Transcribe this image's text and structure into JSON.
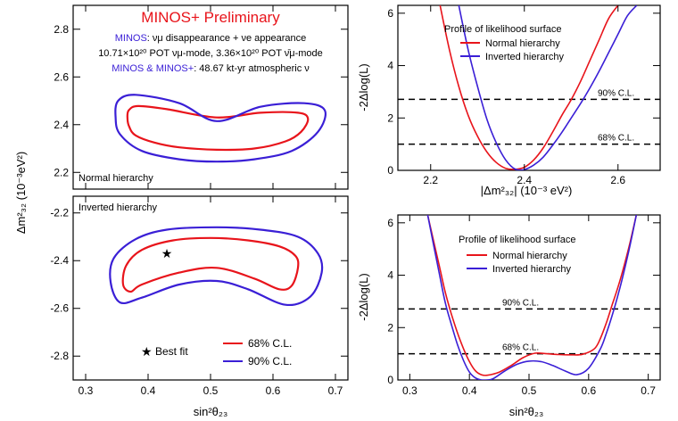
{
  "colors": {
    "normal": "#e8141b",
    "inverted": "#3a1fd6",
    "header_blue": "#3a1fd6",
    "header_red": "#e8141b"
  },
  "left": {
    "header": {
      "title": "MINOS+ Preliminary",
      "line1_blue": "MINOS",
      "line1_rest": ": νμ disappearance + νe appearance",
      "line2": "10.71×10²⁰ POT νμ-mode, 3.36×10²⁰ POT ν̄μ-mode",
      "line3_blue": "MINOS & MINOS+",
      "line3_rest": ": 48.67 kt-yr atmospheric ν"
    },
    "top_label": "Normal hierarchy",
    "bottom_label": "Inverted hierarchy",
    "ylabel": "Δm²₃₂ (10⁻³eV²)",
    "xlabel": "sin²θ₂₃",
    "legend": {
      "best_fit": "Best fit",
      "cl68": "68% C.L.",
      "cl90": "90% C.L."
    },
    "x_ticks": [
      "0.3",
      "0.4",
      "0.5",
      "0.6",
      "0.7"
    ],
    "top_y_ticks": [
      "2.2",
      "2.4",
      "2.6",
      "2.8"
    ],
    "bottom_y_ticks": [
      "-2.8",
      "-2.6",
      "-2.4",
      "-2.2"
    ]
  },
  "right": {
    "ylabel": "-2Δlog(L)",
    "top_xlabel": "|Δm²₃₂| (10⁻³ eV²)",
    "bottom_xlabel": "sin²θ₂₃",
    "legend_title": "Profile of likelihood surface",
    "legend_normal": "Normal hierarchy",
    "legend_inverted": "Inverted hierarchy",
    "cl90": "90% C.L.",
    "cl68": "68% C.L.",
    "top_x_ticks": [
      "2.2",
      "2.4",
      "2.6"
    ],
    "bottom_x_ticks": [
      "0.3",
      "0.4",
      "0.5",
      "0.6",
      "0.7"
    ],
    "y_ticks": [
      "0",
      "2",
      "4",
      "6"
    ]
  },
  "chart_data": [
    {
      "type": "contour",
      "panel": "normal hierarchy",
      "xlim": [
        0.28,
        0.72
      ],
      "ylim": [
        2.13,
        2.9
      ],
      "best_fit": null,
      "contours": [
        {
          "name": "68% C.L.",
          "level": 0.68,
          "points": [
            [
              0.367,
              2.425
            ],
            [
              0.369,
              2.46
            ],
            [
              0.384,
              2.478
            ],
            [
              0.43,
              2.465
            ],
            [
              0.51,
              2.43
            ],
            [
              0.58,
              2.45
            ],
            [
              0.64,
              2.45
            ],
            [
              0.656,
              2.425
            ],
            [
              0.645,
              2.37
            ],
            [
              0.62,
              2.33
            ],
            [
              0.57,
              2.3
            ],
            [
              0.51,
              2.295
            ],
            [
              0.45,
              2.305
            ],
            [
              0.41,
              2.325
            ],
            [
              0.38,
              2.355
            ],
            [
              0.37,
              2.39
            ],
            [
              0.367,
              2.425
            ]
          ]
        },
        {
          "name": "90% C.L.",
          "level": 0.9,
          "points": [
            [
              0.348,
              2.43
            ],
            [
              0.352,
              2.5
            ],
            [
              0.38,
              2.525
            ],
            [
              0.45,
              2.49
            ],
            [
              0.51,
              2.415
            ],
            [
              0.58,
              2.475
            ],
            [
              0.65,
              2.49
            ],
            [
              0.683,
              2.46
            ],
            [
              0.672,
              2.37
            ],
            [
              0.63,
              2.29
            ],
            [
              0.57,
              2.255
            ],
            [
              0.51,
              2.245
            ],
            [
              0.45,
              2.255
            ],
            [
              0.39,
              2.29
            ],
            [
              0.355,
              2.36
            ],
            [
              0.348,
              2.43
            ]
          ]
        }
      ]
    },
    {
      "type": "contour",
      "panel": "inverted hierarchy",
      "xlim": [
        0.28,
        0.72
      ],
      "ylim": [
        -2.9,
        -2.13
      ],
      "best_fit": {
        "x": 0.43,
        "y": -2.37
      },
      "contours": [
        {
          "name": "68% C.L.",
          "level": 0.68,
          "points": [
            [
              0.36,
              -2.5
            ],
            [
              0.365,
              -2.42
            ],
            [
              0.39,
              -2.355
            ],
            [
              0.44,
              -2.315
            ],
            [
              0.5,
              -2.305
            ],
            [
              0.56,
              -2.315
            ],
            [
              0.61,
              -2.34
            ],
            [
              0.636,
              -2.38
            ],
            [
              0.64,
              -2.43
            ],
            [
              0.63,
              -2.505
            ],
            [
              0.61,
              -2.52
            ],
            [
              0.57,
              -2.475
            ],
            [
              0.51,
              -2.43
            ],
            [
              0.45,
              -2.45
            ],
            [
              0.39,
              -2.5
            ],
            [
              0.372,
              -2.53
            ],
            [
              0.36,
              -2.5
            ]
          ]
        },
        {
          "name": "90% C.L.",
          "level": 0.9,
          "points": [
            [
              0.34,
              -2.49
            ],
            [
              0.345,
              -2.39
            ],
            [
              0.38,
              -2.31
            ],
            [
              0.43,
              -2.27
            ],
            [
              0.51,
              -2.26
            ],
            [
              0.58,
              -2.27
            ],
            [
              0.64,
              -2.3
            ],
            [
              0.672,
              -2.37
            ],
            [
              0.678,
              -2.45
            ],
            [
              0.66,
              -2.55
            ],
            [
              0.62,
              -2.585
            ],
            [
              0.56,
              -2.52
            ],
            [
              0.51,
              -2.485
            ],
            [
              0.45,
              -2.5
            ],
            [
              0.39,
              -2.555
            ],
            [
              0.355,
              -2.575
            ],
            [
              0.34,
              -2.49
            ]
          ]
        }
      ]
    },
    {
      "type": "line",
      "title": "Profile of likelihood surface",
      "xlabel": "|Δm²₃₂| (10⁻³ eV²)",
      "ylabel": "-2Δlog(L)",
      "xlim": [
        2.13,
        2.69
      ],
      "ylim": [
        0,
        6.3
      ],
      "cl_lines": [
        {
          "label": "90% C.L.",
          "y": 2.71
        },
        {
          "label": "68% C.L.",
          "y": 1.0
        }
      ],
      "series": [
        {
          "name": "Normal hierarchy",
          "x": [
            2.22,
            2.24,
            2.26,
            2.28,
            2.3,
            2.32,
            2.34,
            2.36,
            2.38,
            2.4,
            2.42,
            2.44,
            2.46,
            2.48,
            2.5,
            2.52,
            2.54,
            2.56,
            2.58,
            2.6
          ],
          "y": [
            6.3,
            4.6,
            3.2,
            2.1,
            1.3,
            0.7,
            0.3,
            0.08,
            0.04,
            0.12,
            0.4,
            0.85,
            1.45,
            2.1,
            2.7,
            3.4,
            4.2,
            5.0,
            5.8,
            6.3
          ]
        },
        {
          "name": "Inverted hierarchy",
          "x": [
            2.26,
            2.28,
            2.3,
            2.32,
            2.34,
            2.36,
            2.38,
            2.4,
            2.42,
            2.44,
            2.46,
            2.48,
            2.5,
            2.52,
            2.54,
            2.56,
            2.58,
            2.6,
            2.62,
            2.64
          ],
          "y": [
            6.3,
            4.6,
            3.2,
            1.95,
            1.05,
            0.4,
            0.05,
            0.03,
            0.2,
            0.5,
            0.95,
            1.45,
            2.0,
            2.55,
            3.15,
            3.8,
            4.5,
            5.2,
            5.9,
            6.3
          ]
        }
      ]
    },
    {
      "type": "line",
      "title": "Profile of likelihood surface",
      "xlabel": "sin²θ₂₃",
      "ylabel": "-2Δlog(L)",
      "xlim": [
        0.28,
        0.72
      ],
      "ylim": [
        0,
        6.3
      ],
      "cl_lines": [
        {
          "label": "90% C.L.",
          "y": 2.71
        },
        {
          "label": "68% C.L.",
          "y": 1.0
        }
      ],
      "series": [
        {
          "name": "Normal hierarchy",
          "x": [
            0.33,
            0.35,
            0.36,
            0.37,
            0.38,
            0.39,
            0.4,
            0.41,
            0.42,
            0.43,
            0.45,
            0.47,
            0.49,
            0.51,
            0.53,
            0.55,
            0.57,
            0.59,
            0.61,
            0.62,
            0.63,
            0.64,
            0.65,
            0.66,
            0.67,
            0.68
          ],
          "y": [
            6.3,
            4.3,
            3.3,
            2.5,
            1.8,
            1.2,
            0.7,
            0.35,
            0.2,
            0.18,
            0.3,
            0.55,
            0.85,
            1.02,
            1.0,
            0.97,
            0.96,
            0.98,
            1.2,
            1.6,
            2.2,
            2.9,
            3.6,
            4.4,
            5.3,
            6.3
          ]
        },
        {
          "name": "Inverted hierarchy",
          "x": [
            0.33,
            0.35,
            0.36,
            0.37,
            0.38,
            0.39,
            0.4,
            0.41,
            0.42,
            0.43,
            0.44,
            0.46,
            0.48,
            0.5,
            0.52,
            0.54,
            0.56,
            0.58,
            0.6,
            0.62,
            0.63,
            0.64,
            0.65,
            0.66,
            0.67,
            0.68
          ],
          "y": [
            6.3,
            4.0,
            2.9,
            2.1,
            1.35,
            0.75,
            0.3,
            0.08,
            0.0,
            0.0,
            0.05,
            0.35,
            0.6,
            0.72,
            0.7,
            0.55,
            0.35,
            0.2,
            0.45,
            1.2,
            1.8,
            2.5,
            3.3,
            4.2,
            5.2,
            6.3
          ]
        }
      ]
    }
  ]
}
